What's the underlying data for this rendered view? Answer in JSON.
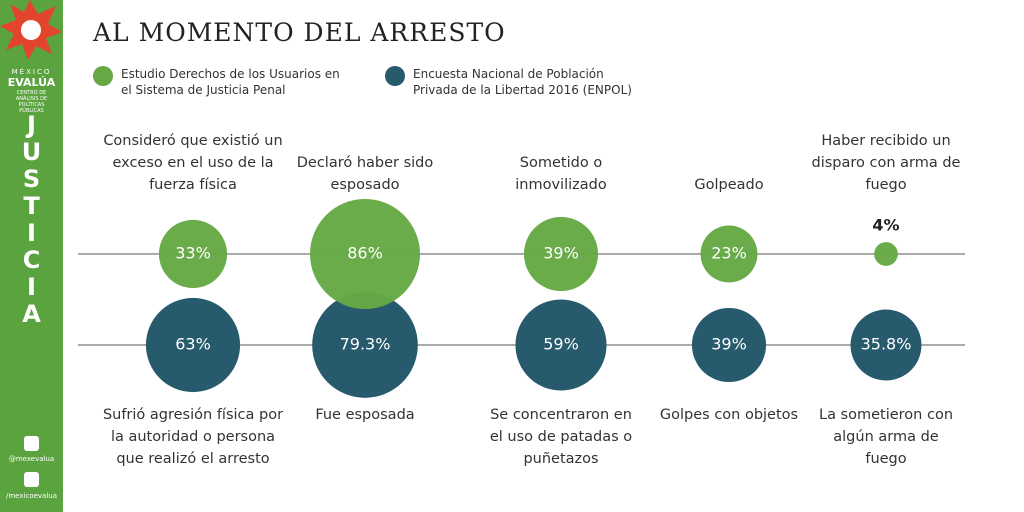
{
  "sidebar": {
    "brand_top": "MÉXICO",
    "brand": "EVALÚA",
    "brand_sub": "CENTRO DE ANÁLISIS DE POLÍTICAS PÚBLICAS",
    "section": "JUSTICIA",
    "twitter": "@mexevalua",
    "facebook": "/mexicoevalua"
  },
  "chart_data": {
    "type": "bubble",
    "title": "AL MOMENTO DEL ARRESTO",
    "series": [
      {
        "name": "Estudio Derechos de los Usuarios en el Sistema de Justicia Penal",
        "color": "#65a844",
        "values": [
          33,
          86,
          39,
          23,
          4
        ],
        "value_labels": [
          "33%",
          "86%",
          "39%",
          "23%",
          "4%"
        ],
        "labels": [
          "Consideró que existió un exceso en el uso de la fuerza física",
          "Declaró haber sido esposado",
          "Sometido o inmovilizado",
          "Golpeado",
          "Haber recibido un disparo con arma de fuego"
        ]
      },
      {
        "name": "Encuesta Nacional de Población Privada de la Libertad 2016 (ENPOL)",
        "color": "#265a6c",
        "values": [
          63,
          79.3,
          59,
          39,
          35.8
        ],
        "value_labels": [
          "63%",
          "79.3%",
          "59%",
          "39%",
          "35.8%"
        ],
        "labels": [
          "Sufrió agresión física por la autoridad o persona que realizó el arresto",
          "Fue esposada",
          "Se concentraron en el uso de patadas o puñetazos",
          "Golpes con objetos",
          "La sometieron con algún arma de fuego"
        ]
      }
    ]
  }
}
